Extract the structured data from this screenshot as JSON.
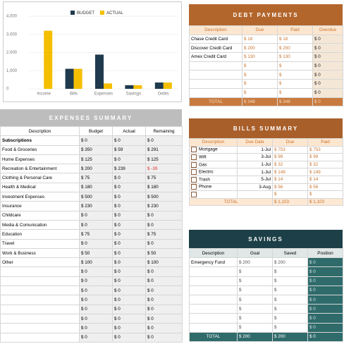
{
  "chart_data": {
    "type": "bar",
    "categories": [
      "Income",
      "Bills",
      "Expenses",
      "Savings",
      "Debts"
    ],
    "series": [
      {
        "name": "BUDGET",
        "color": "#1f3a4d",
        "values": [
          0,
          1103,
          1885,
          200,
          348
        ]
      },
      {
        "name": "ACTUAL",
        "color": "#f5bf00",
        "values": [
          3200,
          1103,
          298,
          200,
          348
        ]
      }
    ],
    "ylim": [
      0,
      4000
    ],
    "yticks": [
      0,
      {
        "value": 1000,
        "label": "1,000"
      },
      {
        "value": 2000,
        "label": "2,000"
      },
      {
        "value": 3000,
        "label": "3,000"
      },
      {
        "value": 4000,
        "label": "4,000"
      }
    ],
    "grid": true,
    "legend": "top"
  },
  "debt_payments": {
    "title": "DEBT PAYMENTS",
    "columns": [
      "Description",
      "Due",
      "Paid",
      "Overdue"
    ],
    "rows": [
      [
        "Chase Credit Card",
        "$ 18",
        "$ 18",
        "$ 0"
      ],
      [
        "Discover Credit Card",
        "$ 200",
        "$ 200",
        "$ 0"
      ],
      [
        "Amex Credit Card",
        "$ 130",
        "$ 130",
        "$ 0"
      ],
      [
        "",
        "$",
        "$",
        "$ 0"
      ],
      [
        "",
        "$",
        "$",
        "$ 0"
      ],
      [
        "",
        "$",
        "$",
        "$ 0"
      ],
      [
        "",
        "$",
        "$",
        "$ 0"
      ]
    ],
    "total": [
      "TOTAL",
      "$ 348",
      "$ 348",
      "$ 0"
    ]
  },
  "expenses_summary": {
    "title": "EXPENSES SUMMARY",
    "columns": [
      "Description",
      "Budget",
      "Actual",
      "Remaining"
    ],
    "rows": [
      [
        "Subscriptions",
        "$ 0",
        "$ 0",
        "$ 0"
      ],
      [
        "Food & Groceries",
        "$ 350",
        "$ 59",
        "$ 291"
      ],
      [
        "Home Expenses",
        "$ 125",
        "$ 0",
        "$ 125"
      ],
      [
        "Recreation & Entertainment",
        "$ 200",
        "$ 239",
        "$ -39"
      ],
      [
        "Clothing & Personal Care",
        "$ 75",
        "$ 0",
        "$ 75"
      ],
      [
        "Health & Medical",
        "$ 180",
        "$ 0",
        "$ 180"
      ],
      [
        "Investment Expenses",
        "$ 500",
        "$ 0",
        "$ 500"
      ],
      [
        "Insurance",
        "$ 230",
        "$ 0",
        "$ 230"
      ],
      [
        "Childcare",
        "$ 0",
        "$ 0",
        "$ 0"
      ],
      [
        "Media & Comunication",
        "$ 0",
        "$ 0",
        "$ 0"
      ],
      [
        "Education",
        "$ 75",
        "$ 0",
        "$ 75"
      ],
      [
        "Travel",
        "$ 0",
        "$ 0",
        "$ 0"
      ],
      [
        "Work & Business",
        "$ 50",
        "$ 0",
        "$ 50"
      ],
      [
        "Other",
        "$ 100",
        "$ 0",
        "$ 100"
      ],
      [
        "",
        "$ 0",
        "$ 0",
        "$ 0"
      ],
      [
        "",
        "$ 0",
        "$ 0",
        "$ 0"
      ],
      [
        "",
        "$ 0",
        "$ 0",
        "$ 0"
      ],
      [
        "",
        "$ 0",
        "$ 0",
        "$ 0"
      ],
      [
        "",
        "$ 0",
        "$ 0",
        "$ 0"
      ],
      [
        "",
        "$ 0",
        "$ 0",
        "$ 0"
      ],
      [
        "",
        "$ 0",
        "$ 0",
        "$ 0"
      ],
      [
        "",
        "$ 0",
        "$ 0",
        "$ 0"
      ]
    ]
  },
  "bills_summary": {
    "title": "BILLS SUMMARY",
    "columns": [
      "Description",
      "Due Date",
      "Due",
      "Paid"
    ],
    "rows": [
      [
        "Mortgage",
        "1-Jul",
        "$ 753",
        "$ 753"
      ],
      [
        "Wifi",
        "3-Jul",
        "$ 99",
        "$ 99"
      ],
      [
        "Gas",
        "1-Jul",
        "$ 32",
        "$ 32"
      ],
      [
        "Electric",
        "1-Jul",
        "$ 149",
        "$ 149"
      ],
      [
        "Trash",
        "5-Jul",
        "$ 14",
        "$ 14"
      ],
      [
        "Phone",
        "3-Aug",
        "$ 56",
        "$ 56"
      ],
      [
        "",
        "",
        "$",
        "$"
      ]
    ],
    "total": [
      "TOTAL",
      "$ 1,103",
      "$ 1,103"
    ]
  },
  "savings": {
    "title": "SAVINGS",
    "columns": [
      "Description",
      "Goal",
      "Saved",
      "Position"
    ],
    "rows": [
      [
        "Emergency Fund",
        "$ 200",
        "$ 200",
        "$ 0"
      ],
      [
        "",
        "$",
        "$",
        "$ 0"
      ],
      [
        "",
        "$",
        "$",
        "$ 0"
      ],
      [
        "",
        "$",
        "$",
        "$ 0"
      ],
      [
        "",
        "$",
        "$",
        "$ 0"
      ],
      [
        "",
        "$",
        "$",
        "$ 0"
      ],
      [
        "",
        "$",
        "$",
        "$ 0"
      ],
      [
        "",
        "$",
        "$",
        "$ 0"
      ]
    ],
    "total": [
      "TOTAL",
      "$ 200",
      "$ 200",
      "$ 0"
    ]
  }
}
